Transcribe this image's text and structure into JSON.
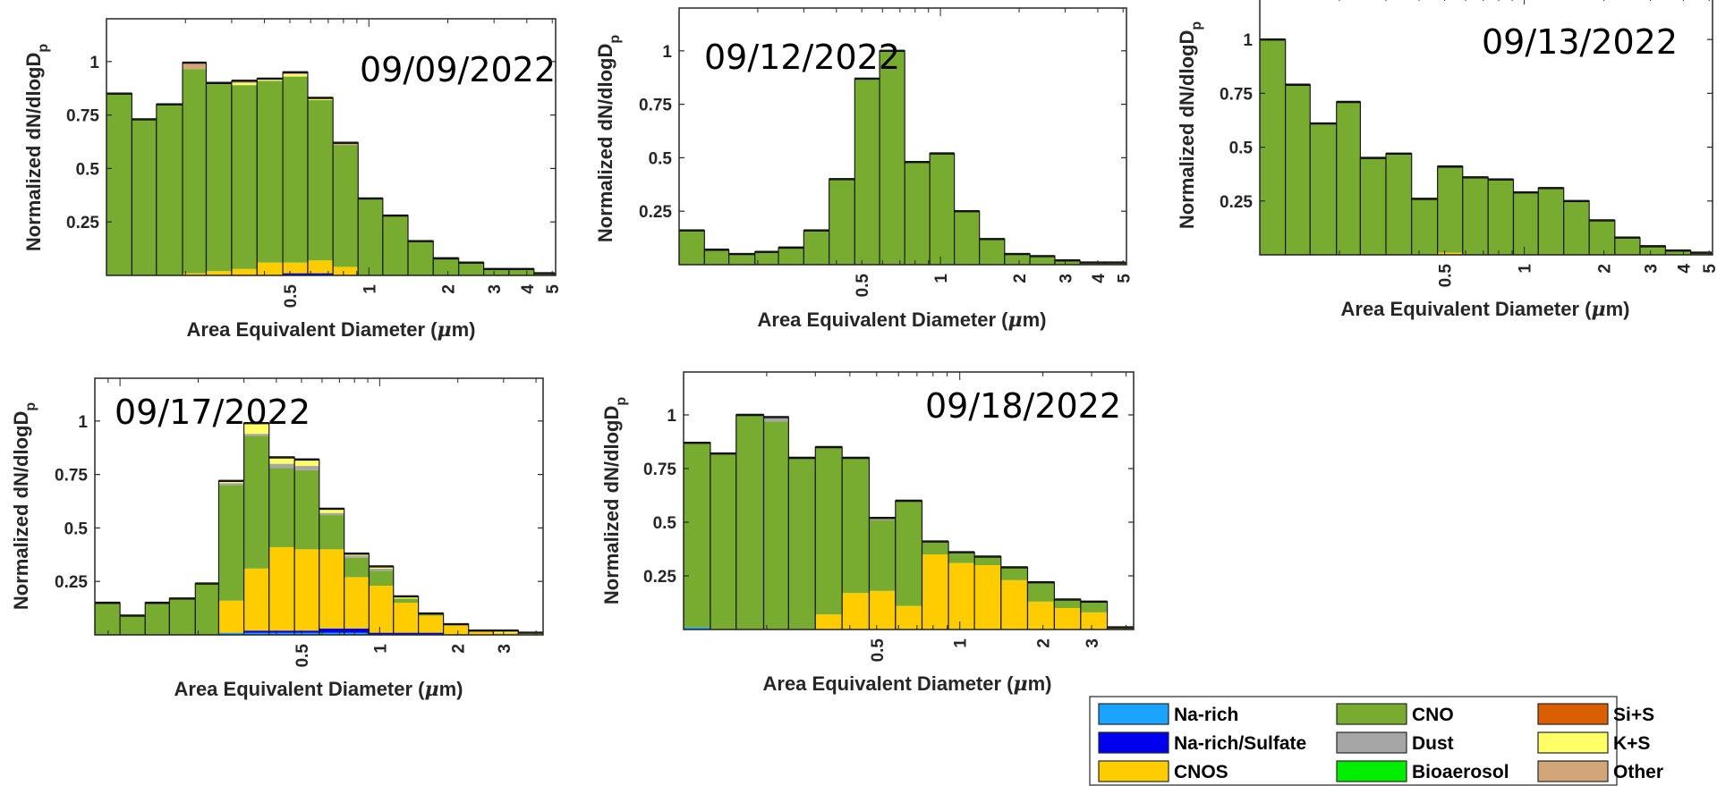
{
  "colors": {
    "Na-rich": "#1aa3ff",
    "Na-rich/Sulfate": "#0000ee",
    "CNOS": "#ffcc00",
    "CNO": "#77ac30",
    "Dust": "#a6a6a6",
    "Bioaerosol": "#00ee00",
    "Si+S": "#d95f02",
    "K+S": "#ffff66",
    "Other": "#d2a679",
    "Edge": "#1a1a1a"
  },
  "legend": {
    "columns": [
      [
        "Na-rich",
        "Na-rich/Sulfate",
        "CNOS"
      ],
      [
        "CNO",
        "Dust",
        "Bioaerosol"
      ],
      [
        "Si+S",
        "K+S",
        "Other"
      ]
    ]
  },
  "chart_data": [
    {
      "type": "bar",
      "stacked": true,
      "annotation": "09/09/2022",
      "xlabel": "Area Equivalent Diameter (μm)",
      "ylabel": "Normalized dN/dlogD_p",
      "xscale": "log",
      "x_ticks": [
        "0.5",
        "1",
        "2",
        "3",
        "4",
        "5"
      ],
      "y_ticks": [
        "0.25",
        "0.5",
        "0.75",
        "1"
      ],
      "ylim": [
        0,
        1.2
      ],
      "bin_edges": [
        0.1,
        0.125,
        0.155,
        0.195,
        0.24,
        0.3,
        0.375,
        0.47,
        0.585,
        0.73,
        0.91,
        1.13,
        1.41,
        1.76,
        2.2,
        2.74,
        3.42,
        4.26,
        5.1
      ],
      "series": [
        {
          "name": "Na-rich/Sulfate",
          "values": [
            0,
            0,
            0,
            0,
            0,
            0,
            0,
            0.01,
            0.01,
            0,
            0,
            0,
            0,
            0,
            0,
            0,
            0,
            0
          ]
        },
        {
          "name": "CNOS",
          "values": [
            0,
            0,
            0,
            0.01,
            0.02,
            0.03,
            0.06,
            0.05,
            0.06,
            0.04,
            0,
            0,
            0,
            0,
            0,
            0,
            0,
            0
          ]
        },
        {
          "name": "CNO",
          "values": [
            0.85,
            0.73,
            0.8,
            0.955,
            0.88,
            0.86,
            0.85,
            0.87,
            0.75,
            0.57,
            0.36,
            0.28,
            0.16,
            0.08,
            0.06,
            0.03,
            0.03,
            0.01
          ]
        },
        {
          "name": "K+S",
          "values": [
            0,
            0,
            0,
            0,
            0,
            0.01,
            0.01,
            0.01,
            0.01,
            0,
            0,
            0,
            0,
            0,
            0,
            0,
            0,
            0
          ]
        },
        {
          "name": "Other",
          "values": [
            0,
            0,
            0,
            0.03,
            0,
            0.01,
            0,
            0.01,
            0,
            0.01,
            0,
            0,
            0,
            0,
            0,
            0,
            0,
            0
          ]
        }
      ]
    },
    {
      "type": "bar",
      "stacked": true,
      "annotation": "09/12/2022",
      "xlabel": "Area Equivalent Diameter (μm)",
      "ylabel": "Normalized dN/dlogD_p",
      "xscale": "log",
      "x_ticks": [
        "0.5",
        "1",
        "2",
        "3",
        "4",
        "5"
      ],
      "y_ticks": [
        "0.25",
        "0.5",
        "0.75",
        "1"
      ],
      "ylim": [
        0,
        1.2
      ],
      "bin_edges": [
        0.1,
        0.125,
        0.155,
        0.195,
        0.24,
        0.3,
        0.375,
        0.47,
        0.585,
        0.73,
        0.91,
        1.13,
        1.41,
        1.76,
        2.2,
        2.74,
        3.42,
        4.26,
        5.1
      ],
      "series": [
        {
          "name": "CNO",
          "values": [
            0.16,
            0.07,
            0.05,
            0.06,
            0.08,
            0.16,
            0.4,
            0.87,
            1.0,
            0.48,
            0.52,
            0.25,
            0.12,
            0.05,
            0.04,
            0.02,
            0.01,
            0.01
          ]
        }
      ]
    },
    {
      "type": "bar",
      "stacked": true,
      "annotation": "09/13/2022",
      "xlabel": "Area Equivalent Diameter (μm)",
      "ylabel": "Normalized dN/dlogD_p",
      "xscale": "log",
      "x_ticks": [
        "0.5",
        "1",
        "2",
        "3",
        "4",
        "5"
      ],
      "y_ticks": [
        "0.25",
        "0.5",
        "0.75",
        "1"
      ],
      "ylim": [
        0,
        1.2
      ],
      "bin_edges": [
        0.1,
        0.125,
        0.155,
        0.195,
        0.24,
        0.3,
        0.375,
        0.47,
        0.585,
        0.73,
        0.91,
        1.13,
        1.41,
        1.76,
        2.2,
        2.74,
        3.42,
        4.26,
        5.1
      ],
      "series": [
        {
          "name": "CNOS",
          "values": [
            0,
            0,
            0,
            0,
            0,
            0,
            0,
            0.01,
            0,
            0,
            0,
            0,
            0,
            0,
            0,
            0,
            0,
            0
          ]
        },
        {
          "name": "CNO",
          "values": [
            1.0,
            0.79,
            0.61,
            0.71,
            0.45,
            0.47,
            0.26,
            0.4,
            0.36,
            0.35,
            0.29,
            0.31,
            0.25,
            0.16,
            0.08,
            0.04,
            0.02,
            0.01
          ]
        }
      ]
    },
    {
      "type": "bar",
      "stacked": true,
      "annotation": "09/17/2022",
      "xlabel": "Area Equivalent Diameter (μm)",
      "ylabel": "Normalized dN/dlogD_p",
      "xscale": "log",
      "x_ticks": [
        "0.5",
        "1",
        "2",
        "3"
      ],
      "y_ticks": [
        "0.25",
        "0.5",
        "0.75",
        "1"
      ],
      "ylim": [
        0,
        1.2
      ],
      "bin_edges": [
        0.08,
        0.1,
        0.125,
        0.155,
        0.195,
        0.24,
        0.3,
        0.375,
        0.47,
        0.585,
        0.73,
        0.91,
        1.13,
        1.41,
        1.76,
        2.2,
        2.74,
        3.42,
        4.26
      ],
      "series": [
        {
          "name": "Na-rich",
          "values": [
            0,
            0,
            0,
            0,
            0,
            0.01,
            0.01,
            0.01,
            0.01,
            0.01,
            0.01,
            0,
            0,
            0,
            0,
            0,
            0,
            0
          ]
        },
        {
          "name": "Na-rich/Sulfate",
          "values": [
            0,
            0,
            0,
            0,
            0,
            0,
            0.01,
            0.01,
            0.01,
            0.02,
            0.02,
            0.01,
            0.01,
            0.01,
            0,
            0,
            0,
            0
          ]
        },
        {
          "name": "CNOS",
          "values": [
            0,
            0,
            0,
            0,
            0,
            0.15,
            0.29,
            0.39,
            0.38,
            0.37,
            0.24,
            0.22,
            0.14,
            0.08,
            0.05,
            0.02,
            0.01,
            0
          ]
        },
        {
          "name": "CNO",
          "values": [
            0.15,
            0.09,
            0.15,
            0.17,
            0.24,
            0.54,
            0.62,
            0.37,
            0.37,
            0.16,
            0.09,
            0.07,
            0.02,
            0.01,
            0,
            0,
            0,
            0
          ]
        },
        {
          "name": "Dust",
          "values": [
            0,
            0,
            0,
            0,
            0,
            0.01,
            0.01,
            0.02,
            0.02,
            0.01,
            0.01,
            0.01,
            0,
            0,
            0,
            0,
            0,
            0
          ]
        },
        {
          "name": "K+S",
          "values": [
            0,
            0,
            0,
            0,
            0,
            0.01,
            0.05,
            0.03,
            0.03,
            0.02,
            0.01,
            0.01,
            0.01,
            0,
            0,
            0,
            0.01,
            0.01
          ]
        }
      ]
    },
    {
      "type": "bar",
      "stacked": true,
      "annotation": "09/18/2022",
      "xlabel": "Area Equivalent Diameter (μm)",
      "ylabel": "Normalized dN/dlogD_p",
      "xscale": "log",
      "x_ticks": [
        "0.5",
        "1",
        "2",
        "3"
      ],
      "y_ticks": [
        "0.25",
        "0.5",
        "0.75",
        "1"
      ],
      "ylim": [
        0,
        1.2
      ],
      "bin_edges": [
        0.1,
        0.125,
        0.155,
        0.195,
        0.24,
        0.3,
        0.375,
        0.47,
        0.585,
        0.73,
        0.91,
        1.13,
        1.41,
        1.76,
        2.2,
        2.74,
        3.42,
        4.26
      ],
      "series": [
        {
          "name": "Na-rich",
          "values": [
            0.01,
            0,
            0,
            0,
            0,
            0,
            0,
            0,
            0,
            0,
            0,
            0,
            0,
            0,
            0,
            0,
            0
          ]
        },
        {
          "name": "CNOS",
          "values": [
            0,
            0,
            0,
            0,
            0,
            0.07,
            0.17,
            0.18,
            0.11,
            0.35,
            0.31,
            0.3,
            0.23,
            0.13,
            0.1,
            0.08,
            0
          ]
        },
        {
          "name": "CNO",
          "values": [
            0.86,
            0.82,
            1.0,
            0.97,
            0.8,
            0.78,
            0.63,
            0.33,
            0.49,
            0.06,
            0.05,
            0.04,
            0.06,
            0.09,
            0.04,
            0.05,
            0.01
          ]
        },
        {
          "name": "Dust",
          "values": [
            0,
            0,
            0,
            0.02,
            0,
            0,
            0,
            0.01,
            0,
            0,
            0,
            0,
            0,
            0,
            0,
            0,
            0
          ]
        }
      ]
    }
  ]
}
